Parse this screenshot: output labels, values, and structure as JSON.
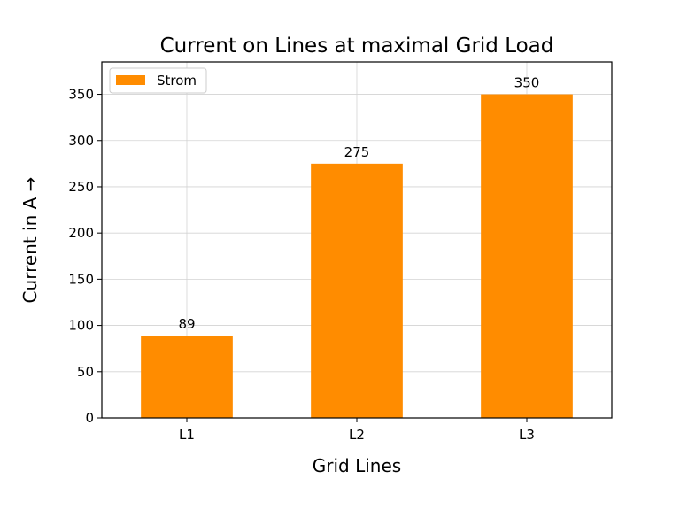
{
  "chart_data": {
    "type": "bar",
    "title": "Current on Lines at maximal Grid Load",
    "xlabel": "Grid Lines",
    "ylabel": "Current in A →",
    "categories": [
      "L1",
      "L2",
      "L3"
    ],
    "series": [
      {
        "name": "Strom",
        "values": [
          89,
          275,
          350
        ],
        "color": "#ff8c00"
      }
    ],
    "data_labels": [
      "89",
      "275",
      "350"
    ],
    "ylim": [
      0,
      385
    ],
    "yticks": [
      0,
      50,
      100,
      150,
      200,
      250,
      300,
      350
    ],
    "grid": true,
    "legend": "top-left"
  }
}
